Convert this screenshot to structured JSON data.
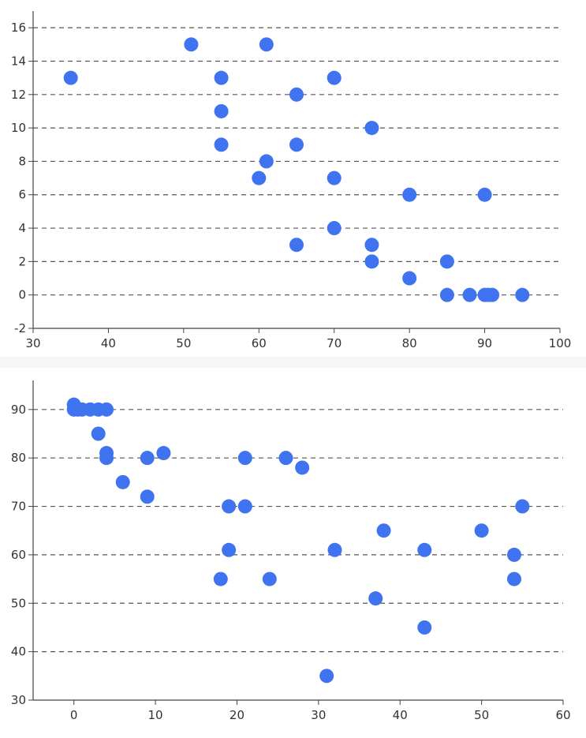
{
  "colors": {
    "point": "#3F73F0",
    "grid": "#555555",
    "axis": "#444444",
    "text": "#333333"
  },
  "chart_data": [
    {
      "type": "scatter",
      "grid": "horizontal dashed",
      "xlim": [
        30,
        100
      ],
      "ylim": [
        -2,
        17
      ],
      "xticks": [
        30,
        40,
        50,
        60,
        70,
        80,
        90,
        100
      ],
      "yticks": [
        -2,
        0,
        2,
        4,
        6,
        8,
        10,
        12,
        14,
        16
      ],
      "points": [
        {
          "x": 35,
          "y": 13
        },
        {
          "x": 51,
          "y": 15
        },
        {
          "x": 61,
          "y": 15
        },
        {
          "x": 55,
          "y": 13
        },
        {
          "x": 70,
          "y": 13
        },
        {
          "x": 65,
          "y": 12
        },
        {
          "x": 55,
          "y": 11
        },
        {
          "x": 75,
          "y": 10
        },
        {
          "x": 55,
          "y": 9
        },
        {
          "x": 65,
          "y": 9
        },
        {
          "x": 61,
          "y": 8
        },
        {
          "x": 60,
          "y": 7
        },
        {
          "x": 70,
          "y": 7
        },
        {
          "x": 80,
          "y": 6
        },
        {
          "x": 90,
          "y": 6
        },
        {
          "x": 70,
          "y": 4
        },
        {
          "x": 65,
          "y": 3
        },
        {
          "x": 75,
          "y": 3
        },
        {
          "x": 75,
          "y": 2
        },
        {
          "x": 85,
          "y": 2
        },
        {
          "x": 80,
          "y": 1
        },
        {
          "x": 85,
          "y": 0
        },
        {
          "x": 88,
          "y": 0
        },
        {
          "x": 90,
          "y": 0
        },
        {
          "x": 90.5,
          "y": 0
        },
        {
          "x": 91,
          "y": 0
        },
        {
          "x": 95,
          "y": 0
        }
      ]
    },
    {
      "type": "scatter",
      "grid": "horizontal dashed",
      "xlim": [
        -5,
        60
      ],
      "ylim": [
        30,
        96
      ],
      "xticks": [
        0,
        10,
        20,
        30,
        40,
        50,
        60
      ],
      "yticks": [
        30,
        40,
        50,
        60,
        70,
        80,
        90
      ],
      "points": [
        {
          "x": 0,
          "y": 91
        },
        {
          "x": 0,
          "y": 90
        },
        {
          "x": 0.5,
          "y": 90
        },
        {
          "x": 1,
          "y": 90
        },
        {
          "x": 2,
          "y": 90
        },
        {
          "x": 3,
          "y": 90
        },
        {
          "x": 4,
          "y": 90
        },
        {
          "x": 3,
          "y": 85
        },
        {
          "x": 4,
          "y": 81
        },
        {
          "x": 4,
          "y": 80
        },
        {
          "x": 6,
          "y": 75
        },
        {
          "x": 9,
          "y": 80
        },
        {
          "x": 9,
          "y": 72
        },
        {
          "x": 11,
          "y": 81
        },
        {
          "x": 18,
          "y": 55
        },
        {
          "x": 19,
          "y": 70
        },
        {
          "x": 19,
          "y": 61
        },
        {
          "x": 21,
          "y": 80
        },
        {
          "x": 21,
          "y": 70
        },
        {
          "x": 24,
          "y": 55
        },
        {
          "x": 26,
          "y": 80
        },
        {
          "x": 28,
          "y": 78
        },
        {
          "x": 31,
          "y": 35
        },
        {
          "x": 32,
          "y": 61
        },
        {
          "x": 37,
          "y": 51
        },
        {
          "x": 38,
          "y": 65
        },
        {
          "x": 43,
          "y": 61
        },
        {
          "x": 43,
          "y": 45
        },
        {
          "x": 50,
          "y": 65
        },
        {
          "x": 54,
          "y": 60
        },
        {
          "x": 54,
          "y": 55
        },
        {
          "x": 55,
          "y": 70
        }
      ]
    }
  ]
}
